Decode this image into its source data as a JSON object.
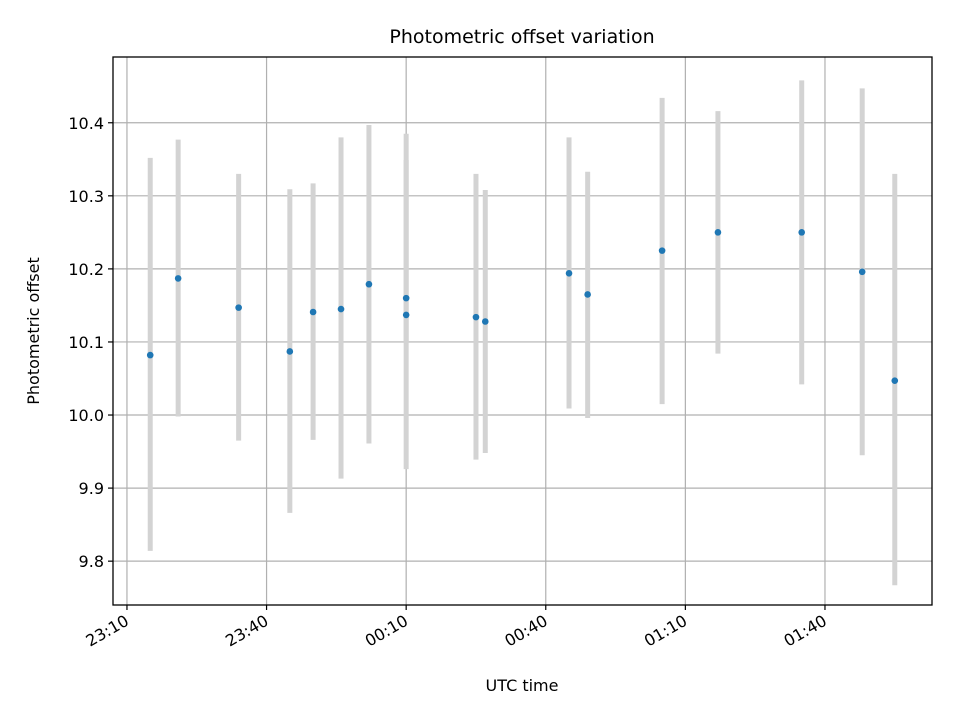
{
  "chart_data": {
    "type": "scatter",
    "title": "Photometric offset variation",
    "xlabel": "UTC time",
    "ylabel": "Photometric offset",
    "xlim": [
      "23:07",
      "02:03"
    ],
    "ylim": [
      9.74,
      10.49
    ],
    "xticks": [
      "23:10",
      "23:40",
      "00:10",
      "00:40",
      "01:10",
      "01:40"
    ],
    "yticks": [
      9.8,
      9.9,
      10.0,
      10.1,
      10.2,
      10.3,
      10.4
    ],
    "grid": true,
    "colors": {
      "point": "#1f77b4",
      "errorbar": "#d3d3d3",
      "grid": "#b0b0b0"
    },
    "points": [
      {
        "x": "23:15",
        "y": 10.082,
        "yerr_low": 9.814,
        "yerr_high": 10.352
      },
      {
        "x": "23:21",
        "y": 10.187,
        "yerr_low": 9.998,
        "yerr_high": 10.377
      },
      {
        "x": "23:34",
        "y": 10.147,
        "yerr_low": 9.965,
        "yerr_high": 10.33
      },
      {
        "x": "23:45",
        "y": 10.087,
        "yerr_low": 9.866,
        "yerr_high": 10.309
      },
      {
        "x": "23:50",
        "y": 10.141,
        "yerr_low": 9.966,
        "yerr_high": 10.317
      },
      {
        "x": "23:56",
        "y": 10.145,
        "yerr_low": 9.913,
        "yerr_high": 10.38
      },
      {
        "x": "00:02",
        "y": 10.179,
        "yerr_low": 9.961,
        "yerr_high": 10.397
      },
      {
        "x": "00:10",
        "y": 10.16,
        "yerr_low": 10.1,
        "yerr_high": 10.385
      },
      {
        "x": "00:10",
        "y": 10.137,
        "yerr_low": 9.926,
        "yerr_high": 10.349
      },
      {
        "x": "00:25",
        "y": 10.134,
        "yerr_low": 9.939,
        "yerr_high": 10.33
      },
      {
        "x": "00:27",
        "y": 10.128,
        "yerr_low": 9.948,
        "yerr_high": 10.308
      },
      {
        "x": "00:45",
        "y": 10.194,
        "yerr_low": 10.009,
        "yerr_high": 10.38
      },
      {
        "x": "00:49",
        "y": 10.165,
        "yerr_low": 9.996,
        "yerr_high": 10.333
      },
      {
        "x": "01:05",
        "y": 10.225,
        "yerr_low": 10.015,
        "yerr_high": 10.434
      },
      {
        "x": "01:17",
        "y": 10.25,
        "yerr_low": 10.084,
        "yerr_high": 10.416
      },
      {
        "x": "01:35",
        "y": 10.25,
        "yerr_low": 10.042,
        "yerr_high": 10.458
      },
      {
        "x": "01:48",
        "y": 10.196,
        "yerr_low": 9.945,
        "yerr_high": 10.447
      },
      {
        "x": "01:55",
        "y": 10.047,
        "yerr_low": 9.767,
        "yerr_high": 10.33
      }
    ]
  }
}
